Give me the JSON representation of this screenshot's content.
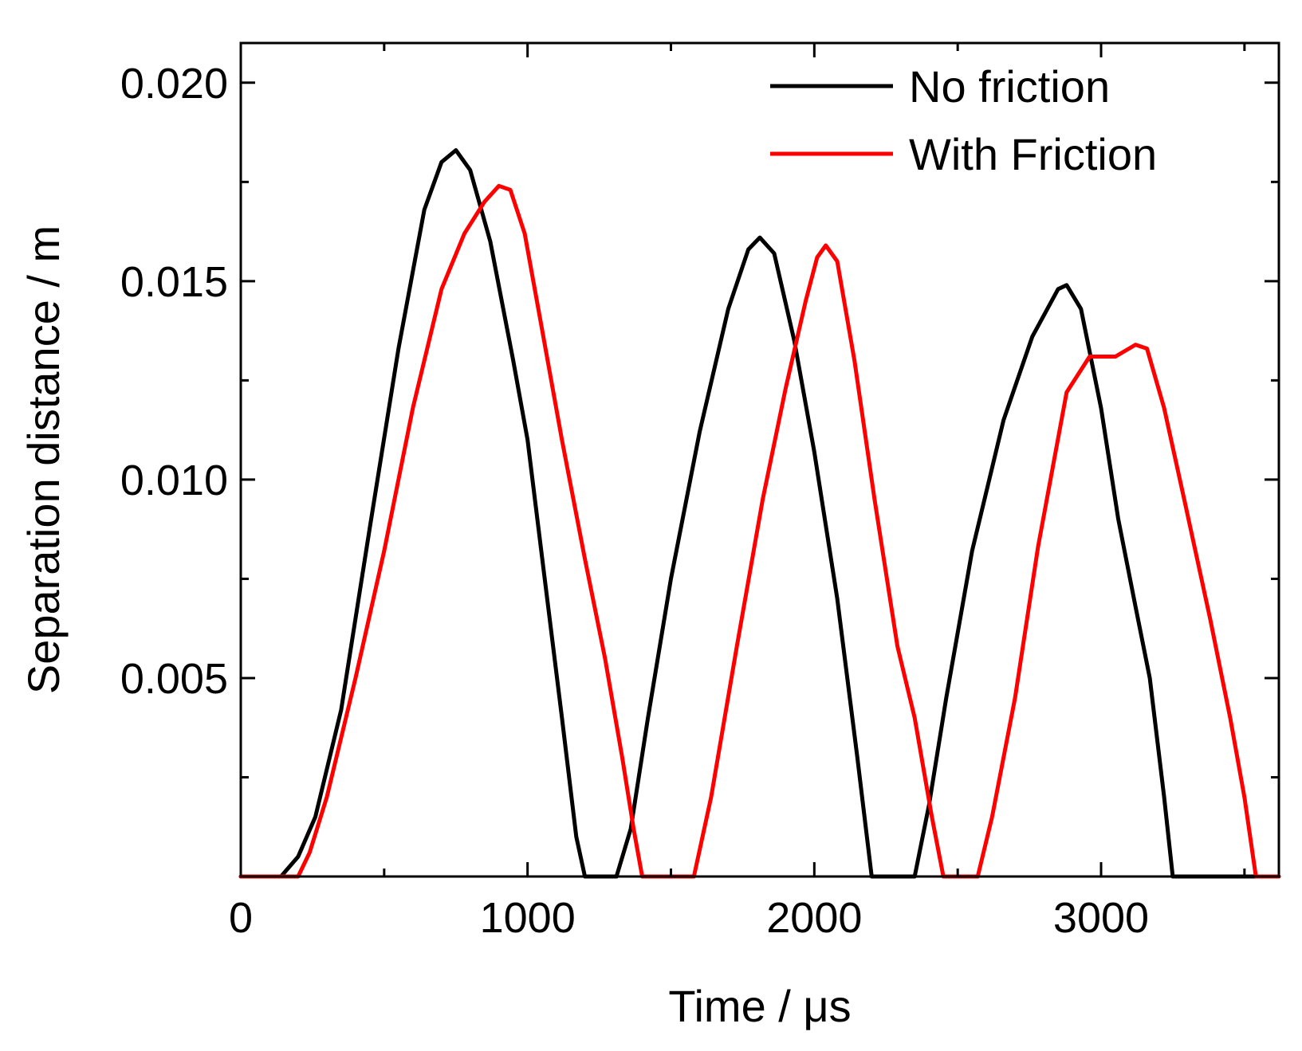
{
  "chart_data": {
    "type": "line",
    "title": "",
    "xlabel": "Time / μs",
    "ylabel": "Separation distance / m",
    "xlim": [
      0,
      3620
    ],
    "ylim": [
      0,
      0.021
    ],
    "x_ticks": [
      {
        "value": 0,
        "label": "0"
      },
      {
        "value": 1000,
        "label": "1000"
      },
      {
        "value": 2000,
        "label": "2000"
      },
      {
        "value": 3000,
        "label": "3000"
      }
    ],
    "x_minor_ticks": [
      500,
      1500,
      2500,
      3500
    ],
    "y_ticks": [
      {
        "value": 0.005,
        "label": "0.005"
      },
      {
        "value": 0.01,
        "label": "0.010"
      },
      {
        "value": 0.015,
        "label": "0.015"
      },
      {
        "value": 0.02,
        "label": "0.020"
      }
    ],
    "y_minor_ticks": [
      0.0025,
      0.0075,
      0.0125,
      0.0175
    ],
    "grid": false,
    "legend_position": "top-right",
    "series": [
      {
        "name": "No friction",
        "color": "#000000",
        "points": [
          [
            0,
            0
          ],
          [
            140,
            0
          ],
          [
            200,
            0.0005
          ],
          [
            260,
            0.0015
          ],
          [
            350,
            0.0042
          ],
          [
            450,
            0.0088
          ],
          [
            550,
            0.0133
          ],
          [
            640,
            0.0168
          ],
          [
            700,
            0.018
          ],
          [
            750,
            0.0183
          ],
          [
            800,
            0.0178
          ],
          [
            870,
            0.016
          ],
          [
            950,
            0.013
          ],
          [
            1000,
            0.011
          ],
          [
            1060,
            0.0075
          ],
          [
            1120,
            0.004
          ],
          [
            1170,
            0.001
          ],
          [
            1200,
            0
          ],
          [
            1310,
            0
          ],
          [
            1360,
            0.0012
          ],
          [
            1420,
            0.004
          ],
          [
            1500,
            0.0075
          ],
          [
            1600,
            0.0112
          ],
          [
            1700,
            0.0143
          ],
          [
            1770,
            0.0158
          ],
          [
            1810,
            0.0161
          ],
          [
            1860,
            0.0157
          ],
          [
            1930,
            0.0135
          ],
          [
            2000,
            0.0107
          ],
          [
            2080,
            0.007
          ],
          [
            2150,
            0.003
          ],
          [
            2200,
            0
          ],
          [
            2350,
            0
          ],
          [
            2400,
            0.0018
          ],
          [
            2460,
            0.0045
          ],
          [
            2550,
            0.0082
          ],
          [
            2660,
            0.0115
          ],
          [
            2760,
            0.0136
          ],
          [
            2850,
            0.0148
          ],
          [
            2880,
            0.0149
          ],
          [
            2930,
            0.0143
          ],
          [
            3000,
            0.0118
          ],
          [
            3060,
            0.009
          ],
          [
            3120,
            0.0068
          ],
          [
            3170,
            0.005
          ],
          [
            3220,
            0.002
          ],
          [
            3250,
            0
          ],
          [
            3620,
            0
          ]
        ]
      },
      {
        "name": "With Friction",
        "color": "#ff0000",
        "points": [
          [
            0,
            0
          ],
          [
            200,
            0
          ],
          [
            240,
            0.0006
          ],
          [
            300,
            0.002
          ],
          [
            400,
            0.005
          ],
          [
            500,
            0.0082
          ],
          [
            600,
            0.0118
          ],
          [
            700,
            0.0148
          ],
          [
            780,
            0.0162
          ],
          [
            850,
            0.017
          ],
          [
            900,
            0.0174
          ],
          [
            940,
            0.0173
          ],
          [
            990,
            0.0162
          ],
          [
            1050,
            0.0138
          ],
          [
            1120,
            0.011
          ],
          [
            1200,
            0.008
          ],
          [
            1270,
            0.0055
          ],
          [
            1330,
            0.003
          ],
          [
            1370,
            0.0012
          ],
          [
            1400,
            0
          ],
          [
            1580,
            0
          ],
          [
            1640,
            0.002
          ],
          [
            1730,
            0.0058
          ],
          [
            1820,
            0.0095
          ],
          [
            1900,
            0.0123
          ],
          [
            1970,
            0.0145
          ],
          [
            2010,
            0.0156
          ],
          [
            2040,
            0.0159
          ],
          [
            2080,
            0.0155
          ],
          [
            2140,
            0.013
          ],
          [
            2210,
            0.0095
          ],
          [
            2290,
            0.0058
          ],
          [
            2350,
            0.004
          ],
          [
            2410,
            0.0015
          ],
          [
            2450,
            0
          ],
          [
            2570,
            0
          ],
          [
            2620,
            0.0015
          ],
          [
            2700,
            0.0045
          ],
          [
            2780,
            0.0083
          ],
          [
            2880,
            0.0122
          ],
          [
            2960,
            0.0131
          ],
          [
            3050,
            0.0131
          ],
          [
            3120,
            0.0134
          ],
          [
            3160,
            0.0133
          ],
          [
            3220,
            0.0118
          ],
          [
            3290,
            0.0095
          ],
          [
            3380,
            0.0065
          ],
          [
            3450,
            0.004
          ],
          [
            3500,
            0.002
          ],
          [
            3540,
            0
          ],
          [
            3620,
            0
          ]
        ]
      }
    ]
  }
}
